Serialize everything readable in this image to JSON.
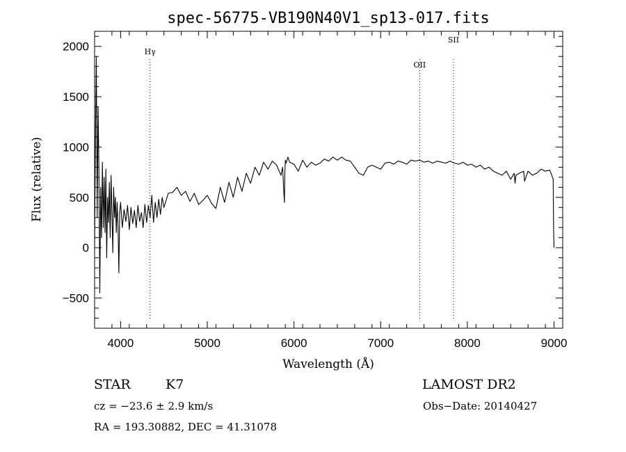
{
  "chart_data": {
    "type": "line",
    "title": "spec-56775-VB190N40V1_sp13-017.fits",
    "xlabel": "Wavelength (Å)",
    "ylabel": "Flux (relative)",
    "xlim": [
      3700,
      9100
    ],
    "ylim": [
      -800,
      2150
    ],
    "xticks": [
      4000,
      5000,
      6000,
      7000,
      8000,
      9000
    ],
    "yticks": [
      -500,
      0,
      500,
      1000,
      1500,
      2000
    ],
    "grid": false,
    "series": [
      {
        "x": [
          3700,
          3710,
          3720,
          3730,
          3740,
          3750,
          3760,
          3770,
          3780,
          3790,
          3800,
          3810,
          3820,
          3830,
          3840,
          3850,
          3860,
          3870,
          3880,
          3890,
          3900,
          3910,
          3920,
          3930,
          3940,
          3950,
          3960,
          3970,
          3980,
          3990,
          4000,
          4020,
          4040,
          4060,
          4080,
          4100,
          4120,
          4140,
          4160,
          4180,
          4200,
          4220,
          4240,
          4260,
          4280,
          4300,
          4320,
          4340,
          4360,
          4380,
          4400,
          4420,
          4440,
          4460,
          4480,
          4500,
          4550,
          4600,
          4650,
          4700,
          4750,
          4800,
          4850,
          4900,
          4950,
          5000,
          5050,
          5100,
          5150,
          5200,
          5250,
          5300,
          5350,
          5400,
          5450,
          5500,
          5550,
          5600,
          5650,
          5700,
          5750,
          5800,
          5850,
          5870,
          5880,
          5890,
          5895,
          5900,
          5910,
          5930,
          5950,
          6000,
          6050,
          6100,
          6150,
          6200,
          6250,
          6300,
          6350,
          6400,
          6450,
          6500,
          6550,
          6600,
          6650,
          6700,
          6750,
          6800,
          6850,
          6900,
          6950,
          7000,
          7050,
          7100,
          7150,
          7200,
          7250,
          7300,
          7350,
          7400,
          7450,
          7500,
          7550,
          7600,
          7650,
          7700,
          7750,
          7800,
          7850,
          7900,
          7950,
          8000,
          8050,
          8100,
          8150,
          8200,
          8250,
          8300,
          8350,
          8400,
          8450,
          8500,
          8540,
          8550,
          8560,
          8600,
          8650,
          8660,
          8700,
          8750,
          8800,
          8850,
          8900,
          8950,
          8970,
          8990,
          8995,
          9000
        ],
        "y": [
          0,
          1100,
          1900,
          300,
          1400,
          800,
          -450,
          600,
          100,
          850,
          200,
          700,
          150,
          780,
          -100,
          500,
          250,
          650,
          100,
          720,
          350,
          -50,
          600,
          300,
          500,
          150,
          450,
          200,
          -250,
          350,
          450,
          200,
          380,
          260,
          420,
          180,
          400,
          240,
          370,
          200,
          420,
          260,
          350,
          200,
          430,
          250,
          420,
          300,
          520,
          250,
          450,
          300,
          480,
          330,
          500,
          400,
          540,
          550,
          600,
          520,
          560,
          460,
          540,
          430,
          470,
          520,
          440,
          390,
          600,
          450,
          650,
          500,
          700,
          560,
          740,
          640,
          800,
          720,
          850,
          780,
          860,
          820,
          720,
          800,
          600,
          450,
          750,
          870,
          840,
          900,
          850,
          830,
          760,
          870,
          800,
          850,
          820,
          840,
          880,
          860,
          900,
          870,
          900,
          870,
          860,
          800,
          740,
          720,
          800,
          820,
          800,
          780,
          840,
          850,
          830,
          860,
          850,
          830,
          870,
          860,
          870,
          850,
          860,
          840,
          860,
          850,
          840,
          860,
          840,
          830,
          850,
          820,
          830,
          800,
          820,
          780,
          800,
          760,
          740,
          720,
          760,
          680,
          740,
          640,
          720,
          740,
          760,
          660,
          760,
          720,
          740,
          780,
          760,
          770,
          730,
          680,
          200,
          0
        ]
      }
    ],
    "annotations": [
      {
        "label": "Hγ",
        "x": 4340
      },
      {
        "label": "OII",
        "x": 7450
      },
      {
        "label": "SII",
        "x": 7840
      }
    ]
  },
  "info": {
    "object_class": "STAR",
    "subclass": "K7",
    "survey": "LAMOST DR2",
    "redshift": "cz = −23.6 ± 2.9 km/s",
    "obs_date": "Obs−Date: 20140427",
    "coords": "RA = 193.30882, DEC =  41.31078"
  }
}
